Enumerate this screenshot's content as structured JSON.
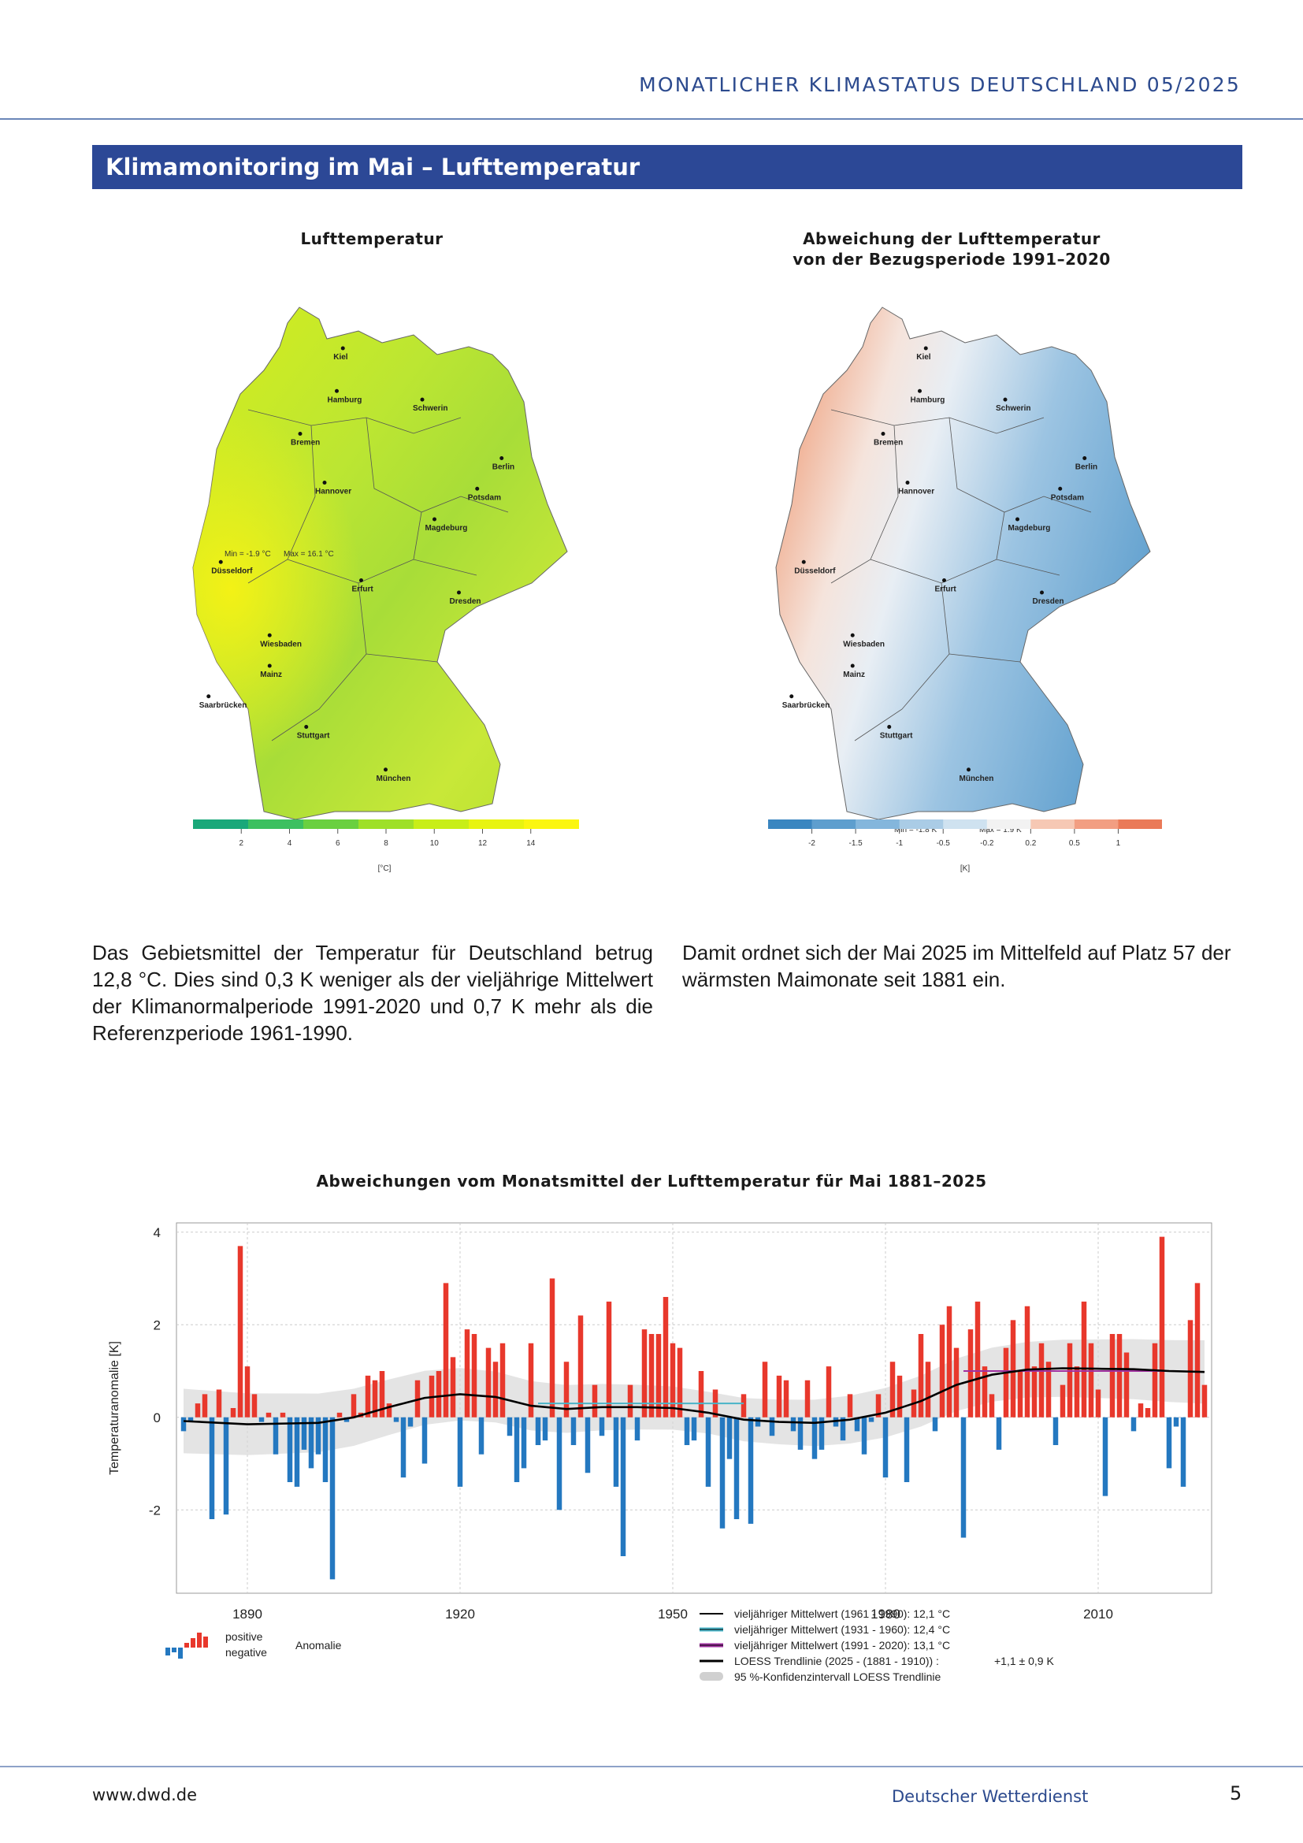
{
  "header": {
    "title": "MONATLICHER KLIMASTATUS DEUTSCHLAND  05/2025"
  },
  "section": {
    "title": "Klimamonitoring im Mai – Lufttemperatur"
  },
  "map_left": {
    "title": "Lufttemperatur",
    "min_label": "Min = -1.9 °C",
    "max_label": "Max = 16.1 °C",
    "ticks": [
      "2",
      "4",
      "6",
      "8",
      "10",
      "12",
      "14"
    ],
    "unit": "[°C]",
    "colors": [
      "#1aa87a",
      "#3cc060",
      "#6ad040",
      "#9ee028",
      "#c8ee18",
      "#e8f410",
      "#fbf610"
    ]
  },
  "map_right": {
    "title_line1": "Abweichung der Lufttemperatur",
    "title_line2": "von der Bezugsperiode 1991–2020",
    "min_label": "Min = -1.8 K",
    "max_label": "Max = 1.9 K",
    "ticks": [
      "-2",
      "-1.5",
      "-1",
      "-0.5",
      "-0.2",
      "0.2",
      "0.5",
      "1"
    ],
    "unit": "[K]",
    "colors": [
      "#3a86c0",
      "#5e9ece",
      "#84b6dc",
      "#aacce6",
      "#cfe2f0",
      "#f2f2f2",
      "#f6c8b4",
      "#f29e82",
      "#ea7a58"
    ]
  },
  "cities": [
    "Kiel",
    "Hamburg",
    "Schwerin",
    "Bremen",
    "Berlin",
    "Hannover",
    "Potsdam",
    "Magdeburg",
    "Düsseldorf",
    "Erfurt",
    "Dresden",
    "Wiesbaden",
    "Mainz",
    "Saarbrücken",
    "Stuttgart",
    "München"
  ],
  "text_left": "Das Gebietsmittel der Temperatur für Deutschland betrug 12,8 °C. Dies sind 0,3 K weniger als der vieljährige Mittelwert der Klimanormalperiode 1991-2020 und 0,7 K mehr als die Referenzperiode 1961-1990.",
  "text_right": "Damit ordnet sich der Mai 2025 im Mittelfeld auf Platz 57 der wärmsten Maimonate seit 1881 ein.",
  "chart_data": {
    "type": "bar",
    "title": "Abweichungen vom Monatsmittel der Lufttemperatur für Mai 1881–2025",
    "xlabel": "",
    "ylabel": "Temperaturanomalie [K]",
    "ylim": [
      -3.8,
      4.2
    ],
    "xlim": [
      1880,
      2026
    ],
    "yticks": [
      "4",
      "2",
      "0",
      "-2"
    ],
    "xticks": [
      "1890",
      "1920",
      "1950",
      "1980",
      "2010"
    ],
    "grid": true,
    "years": [
      1881,
      1882,
      1883,
      1884,
      1885,
      1886,
      1887,
      1888,
      1889,
      1890,
      1891,
      1892,
      1893,
      1894,
      1895,
      1896,
      1897,
      1898,
      1899,
      1900,
      1901,
      1902,
      1903,
      1904,
      1905,
      1906,
      1907,
      1908,
      1909,
      1910,
      1911,
      1912,
      1913,
      1914,
      1915,
      1916,
      1917,
      1918,
      1919,
      1920,
      1921,
      1922,
      1923,
      1924,
      1925,
      1926,
      1927,
      1928,
      1929,
      1930,
      1931,
      1932,
      1933,
      1934,
      1935,
      1936,
      1937,
      1938,
      1939,
      1940,
      1941,
      1942,
      1943,
      1944,
      1945,
      1946,
      1947,
      1948,
      1949,
      1950,
      1951,
      1952,
      1953,
      1954,
      1955,
      1956,
      1957,
      1958,
      1959,
      1960,
      1961,
      1962,
      1963,
      1964,
      1965,
      1966,
      1967,
      1968,
      1969,
      1970,
      1971,
      1972,
      1973,
      1974,
      1975,
      1976,
      1977,
      1978,
      1979,
      1980,
      1981,
      1982,
      1983,
      1984,
      1985,
      1986,
      1987,
      1988,
      1989,
      1990,
      1991,
      1992,
      1993,
      1994,
      1995,
      1996,
      1997,
      1998,
      1999,
      2000,
      2001,
      2002,
      2003,
      2004,
      2005,
      2006,
      2007,
      2008,
      2009,
      2010,
      2011,
      2012,
      2013,
      2014,
      2015,
      2016,
      2017,
      2018,
      2019,
      2020,
      2021,
      2022,
      2023,
      2024,
      2025
    ],
    "values": [
      -0.3,
      -0.1,
      0.3,
      0.5,
      -2.2,
      0.6,
      -2.1,
      0.2,
      3.7,
      1.1,
      0.5,
      -0.1,
      0.1,
      -0.8,
      0.1,
      -1.4,
      -1.5,
      -0.7,
      -1.1,
      -0.8,
      -1.4,
      -3.5,
      0.1,
      -0.1,
      0.5,
      0.1,
      0.9,
      0.8,
      1.0,
      0.3,
      -0.1,
      -1.3,
      -0.2,
      0.8,
      -1.0,
      0.9,
      1.0,
      2.9,
      1.3,
      -1.5,
      1.9,
      1.8,
      -0.8,
      1.5,
      1.2,
      1.6,
      -0.4,
      -1.4,
      -1.1,
      1.6,
      -0.6,
      -0.5,
      3.0,
      -2.0,
      1.2,
      -0.6,
      2.2,
      -1.2,
      0.7,
      -0.4,
      2.5,
      -1.5,
      -3.0,
      0.7,
      -0.5,
      1.9,
      1.8,
      1.8,
      2.6,
      1.6,
      1.5,
      -0.6,
      -0.5,
      1.0,
      -1.5,
      0.6,
      -2.4,
      -0.9,
      -2.2,
      0.5,
      -2.3,
      -0.2,
      1.2,
      -0.4,
      0.9,
      0.8,
      -0.3,
      -0.7,
      0.8,
      -0.9,
      -0.7,
      1.1,
      -0.2,
      -0.5,
      0.5,
      -0.3,
      -0.8,
      -0.1,
      0.5,
      -1.3,
      1.2,
      0.9,
      -1.4,
      0.6,
      1.8,
      1.2,
      -0.3,
      2.0,
      2.4,
      1.5,
      -2.6,
      1.9,
      2.5,
      1.1,
      0.5,
      -0.7,
      1.5,
      2.1,
      1.0,
      2.4,
      1.1,
      1.6,
      1.2,
      -0.6,
      0.7,
      1.6,
      1.1,
      2.5,
      1.6,
      0.6,
      -1.7,
      1.8,
      1.8,
      1.4,
      -0.3,
      0.3,
      0.2,
      1.6,
      3.9,
      -1.1,
      -0.2,
      -1.5,
      2.1,
      2.9,
      0.7
    ],
    "loess": [
      [
        1881,
        -0.08
      ],
      [
        1890,
        -0.15
      ],
      [
        1900,
        -0.12
      ],
      [
        1905,
        0.0
      ],
      [
        1910,
        0.22
      ],
      [
        1915,
        0.42
      ],
      [
        1920,
        0.5
      ],
      [
        1925,
        0.44
      ],
      [
        1930,
        0.25
      ],
      [
        1935,
        0.18
      ],
      [
        1940,
        0.22
      ],
      [
        1945,
        0.22
      ],
      [
        1950,
        0.2
      ],
      [
        1955,
        0.1
      ],
      [
        1960,
        -0.05
      ],
      [
        1965,
        -0.1
      ],
      [
        1970,
        -0.12
      ],
      [
        1975,
        -0.05
      ],
      [
        1980,
        0.1
      ],
      [
        1985,
        0.35
      ],
      [
        1990,
        0.7
      ],
      [
        1995,
        0.92
      ],
      [
        2000,
        1.03
      ],
      [
        2005,
        1.06
      ],
      [
        2010,
        1.05
      ],
      [
        2015,
        1.04
      ],
      [
        2020,
        1.0
      ],
      [
        2025,
        0.98
      ]
    ],
    "mean_1931_1960": {
      "from": 1931,
      "to": 1960,
      "value": 0.3
    },
    "mean_1991_2020": {
      "from": 1991,
      "to": 2020,
      "value": 1.0
    },
    "legend": {
      "positive": "positive",
      "negative": "negative",
      "anomaly": "Anomalie",
      "entries": [
        "vieljähriger Mittelwert (1961 - 1990): 12,1 °C",
        "vieljähriger Mittelwert (1931 - 1960): 12,4 °C",
        "vieljähriger Mittelwert (1991 - 2020): 13,1 °C",
        "LOESS Trendlinie (2025 - (1881 - 1910)) :",
        "95 %-Konfidenzintervall LOESS Trendlinie"
      ],
      "trend_value": "+1,1 ± 0,9 K",
      "colors": {
        "positive": "#e8382c",
        "negative": "#2478c0",
        "m1961": "#000000",
        "m1931": "#49b5c8",
        "m1991": "#a030a0",
        "loess": "#000000",
        "ci": "#d0d0d0"
      }
    }
  },
  "footer": {
    "left": "www.dwd.de",
    "center": "Deutscher Wetterdienst",
    "page": "5"
  }
}
